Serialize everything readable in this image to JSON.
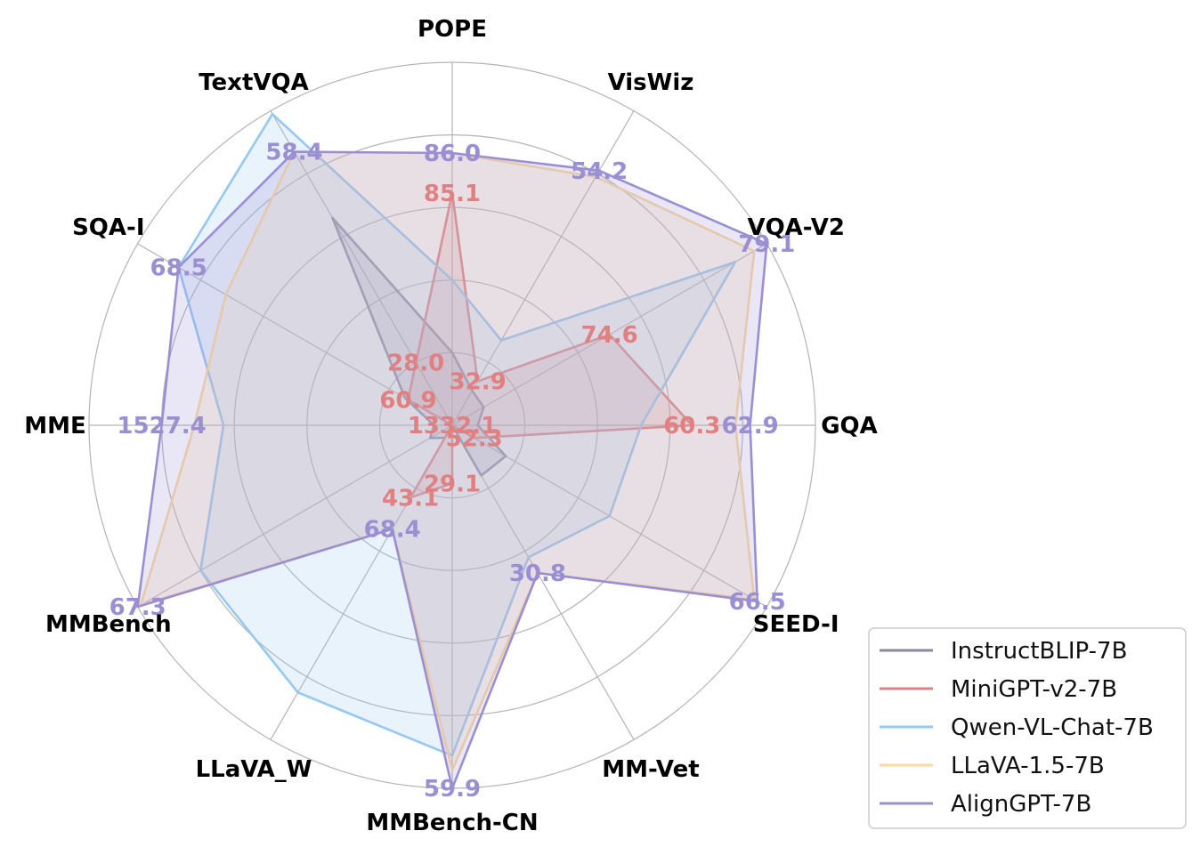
{
  "chart_data": {
    "type": "radar",
    "axes": [
      "POPE",
      "VisWiz",
      "VQA-V2",
      "GQA",
      "SEED-I",
      "MM-Vet",
      "MMBench-CN",
      "LLaVA_W",
      "MMBench",
      "MME",
      "SQA-I",
      "TextVQA"
    ],
    "grid": true,
    "rings": 5,
    "legend_position": "bottom-right",
    "series": [
      {
        "name": "InstructBLIP-7B",
        "color": "#8a8aa3",
        "values": [
          0.2,
          0.11,
          0.1,
          0.07,
          0.17,
          0.16,
          0.0,
          0.04,
          0.07,
          0.05,
          0.15,
          0.66
        ],
        "labels": [
          "",
          "",
          "",
          "",
          "",
          "",
          "",
          "",
          "",
          "",
          "",
          ""
        ]
      },
      {
        "name": "MiniGPT-v2-7B",
        "color": "#e08080",
        "values": [
          0.64,
          0.14,
          0.5,
          0.66,
          0.07,
          0.0,
          0.16,
          0.23,
          0.0,
          0.0,
          0.14,
          0.2
        ],
        "labels": [
          "85.1",
          "32.9",
          "74.6",
          "60.3",
          "52.3",
          "",
          "29.1",
          "43.1",
          "",
          "1332.1",
          "60.9",
          "28.0"
        ]
      },
      {
        "name": "Qwen-VL-Chat-7B",
        "color": "#96c8f0",
        "values": [
          0.4,
          0.27,
          0.9,
          0.52,
          0.5,
          0.42,
          0.91,
          0.85,
          0.8,
          0.63,
          0.87,
          0.99
        ],
        "labels": [
          "",
          "",
          "",
          "",
          "",
          "",
          "",
          "",
          "",
          "",
          "",
          ""
        ]
      },
      {
        "name": "LLaVA-1.5-7B",
        "color": "#fbd9a0",
        "values": [
          0.75,
          0.79,
          0.96,
          0.78,
          0.96,
          0.47,
          0.95,
          0.33,
          0.99,
          0.71,
          0.72,
          0.87
        ],
        "labels": [
          "",
          "",
          "",
          "",
          "",
          "",
          "",
          "",
          "",
          "",
          "",
          ""
        ]
      },
      {
        "name": "AlignGPT-7B",
        "color": "#9b8fd4",
        "values": [
          0.75,
          0.81,
          1.0,
          0.82,
          0.97,
          0.47,
          1.0,
          0.33,
          1.0,
          0.8,
          0.87,
          0.87
        ],
        "labels": [
          "86.0",
          "54.2",
          "79.1",
          "62.9",
          "66.5",
          "30.8",
          "59.9",
          "68.4",
          "67.3",
          "1527.4",
          "68.5",
          "58.4"
        ]
      }
    ]
  }
}
